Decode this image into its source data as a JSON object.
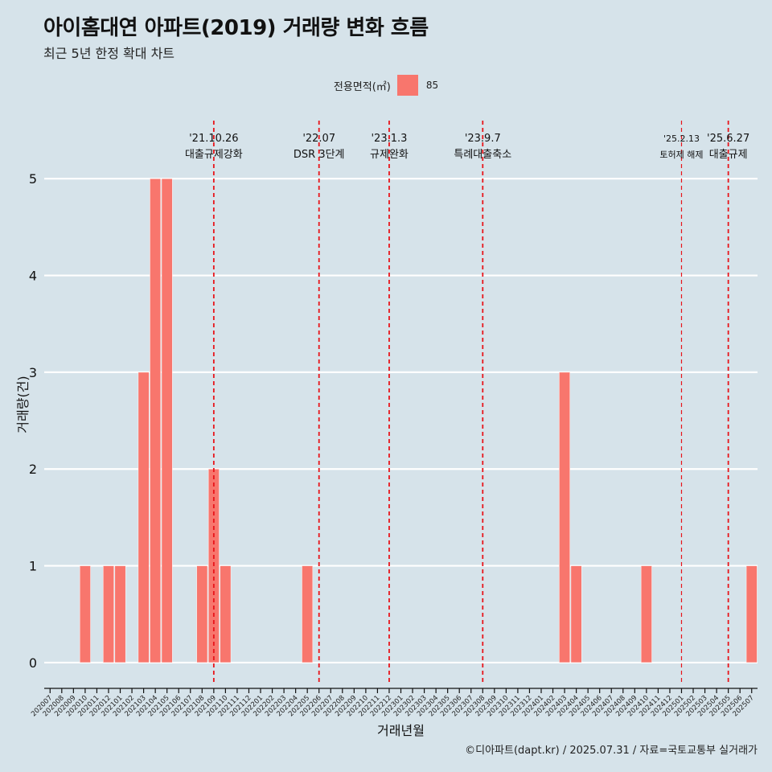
{
  "title": "아이홈대연 아파트(2019) 거래량 변화 흐름",
  "subtitle": "최근 5년 한정 확대 차트",
  "legend": {
    "title": "전용면적(㎡)",
    "label": "85"
  },
  "caption": "©디아파트(dapt.kr) / 2025.07.31 / 자료=국토교통부 실거래가",
  "colors": {
    "bar": "#f8766d",
    "vline": "#e8141a",
    "background": "#d6e3ea",
    "grid": "#ffffff"
  },
  "chart_data": {
    "type": "bar",
    "xlabel": "거래년월",
    "ylabel": "거래량(건)",
    "ylim": [
      -0.2,
      5.6
    ],
    "yticks": [
      0,
      1,
      2,
      3,
      4,
      5
    ],
    "grid": "horizontal",
    "legend_position": "top",
    "categories": [
      "202007",
      "202008",
      "202009",
      "202010",
      "202011",
      "202012",
      "202101",
      "202102",
      "202103",
      "202104",
      "202105",
      "202106",
      "202107",
      "202108",
      "202109",
      "202110",
      "202111",
      "202112",
      "202201",
      "202202",
      "202203",
      "202204",
      "202205",
      "202206",
      "202207",
      "202208",
      "202209",
      "202210",
      "202211",
      "202212",
      "202301",
      "202302",
      "202303",
      "202304",
      "202305",
      "202306",
      "202307",
      "202308",
      "202309",
      "202310",
      "202311",
      "202312",
      "202401",
      "202402",
      "202403",
      "202404",
      "202405",
      "202406",
      "202407",
      "202408",
      "202409",
      "202410",
      "202411",
      "202412",
      "202501",
      "202502",
      "202503",
      "202504",
      "202505",
      "202506",
      "202507"
    ],
    "series": [
      {
        "name": "85",
        "values": [
          null,
          null,
          null,
          1,
          null,
          1,
          1,
          null,
          3,
          5,
          5,
          null,
          null,
          1,
          2,
          1,
          null,
          null,
          null,
          null,
          null,
          null,
          1,
          null,
          null,
          null,
          null,
          null,
          null,
          null,
          null,
          null,
          null,
          null,
          null,
          null,
          null,
          null,
          null,
          null,
          null,
          null,
          null,
          null,
          3,
          1,
          null,
          null,
          null,
          null,
          null,
          1,
          null,
          null,
          null,
          null,
          null,
          null,
          null,
          null,
          1
        ]
      }
    ],
    "annotations": [
      {
        "x": 14.5,
        "date": "'21.10.26",
        "label": "대출규제강화"
      },
      {
        "x": 23.5,
        "date": "'22.07",
        "label": "DSR 3단계"
      },
      {
        "x": 29.5,
        "date": "'23.1.3",
        "label": "규제완화"
      },
      {
        "x": 37.5,
        "date": "'23.9.7",
        "label": "특례대출축소"
      },
      {
        "x": 54.5,
        "date": "'25.2.13",
        "label": "토허제 해제",
        "small": true
      },
      {
        "x": 58.5,
        "date": "'25.6.27",
        "label": "대출규제"
      }
    ]
  }
}
